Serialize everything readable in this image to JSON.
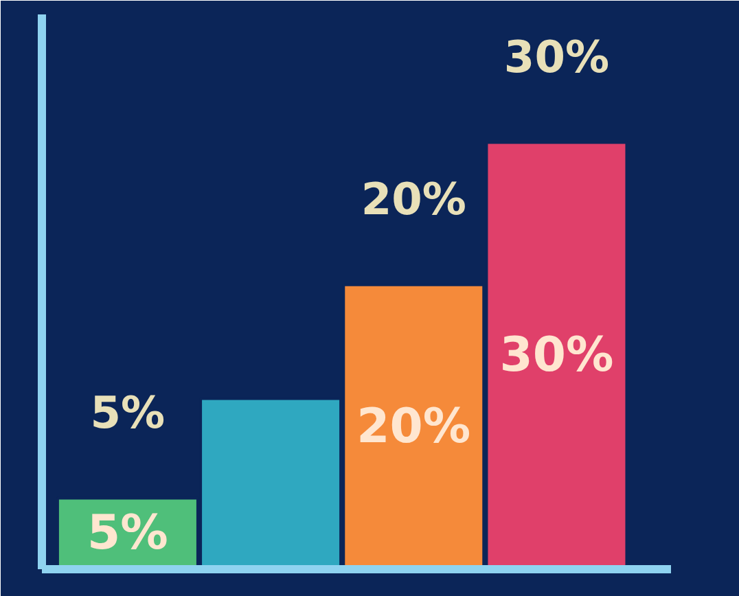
{
  "chart_data": {
    "type": "bar",
    "categories": [
      null,
      null,
      null,
      null
    ],
    "values": [
      5,
      12,
      20,
      30
    ],
    "colors": [
      "#4fbf7a",
      "#2fa8c0",
      "#f58a3a",
      "#e0406a"
    ],
    "value_labels": [
      "5%",
      null,
      "20%",
      "30%"
    ],
    "annotations": [
      "5%",
      "20%",
      "30%"
    ],
    "grid": false
  }
}
